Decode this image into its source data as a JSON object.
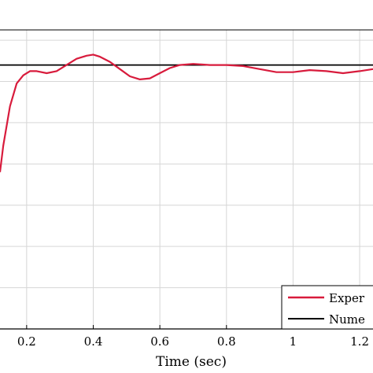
{
  "chart_data": {
    "type": "line",
    "title": "",
    "xlabel": "Time (sec)",
    "ylabel": "",
    "xlim": [
      0.12,
      1.24
    ],
    "ylim": [
      0,
      1.45
    ],
    "x_ticks": [
      0.2,
      0.4,
      0.6,
      0.8,
      1,
      1.2
    ],
    "x_tick_labels": [
      "0.2",
      "0.4",
      "0.6",
      "0.8",
      "1",
      "1.2"
    ],
    "y_grid": [
      0.2,
      0.4,
      0.6,
      0.8,
      1.0,
      1.2,
      1.4
    ],
    "grid": true,
    "legend_position": "bottom-right",
    "series": [
      {
        "name": "Experimental",
        "legend_label": "Exper",
        "color": "#d81b3c",
        "x": [
          0.12,
          0.13,
          0.15,
          0.17,
          0.19,
          0.21,
          0.23,
          0.26,
          0.29,
          0.32,
          0.35,
          0.38,
          0.4,
          0.42,
          0.45,
          0.48,
          0.51,
          0.54,
          0.57,
          0.6,
          0.63,
          0.66,
          0.7,
          0.75,
          0.8,
          0.85,
          0.9,
          0.95,
          1.0,
          1.05,
          1.1,
          1.15,
          1.2,
          1.24
        ],
        "y": [
          0.76,
          0.89,
          1.08,
          1.19,
          1.23,
          1.25,
          1.25,
          1.24,
          1.25,
          1.28,
          1.31,
          1.325,
          1.33,
          1.32,
          1.295,
          1.26,
          1.225,
          1.21,
          1.215,
          1.24,
          1.265,
          1.28,
          1.285,
          1.28,
          1.28,
          1.275,
          1.26,
          1.245,
          1.245,
          1.255,
          1.25,
          1.24,
          1.25,
          1.26
        ]
      },
      {
        "name": "Numerical",
        "legend_label": "Nume",
        "color": "#000000",
        "x": [
          0.12,
          1.24
        ],
        "y": [
          1.28,
          1.28
        ]
      }
    ]
  }
}
